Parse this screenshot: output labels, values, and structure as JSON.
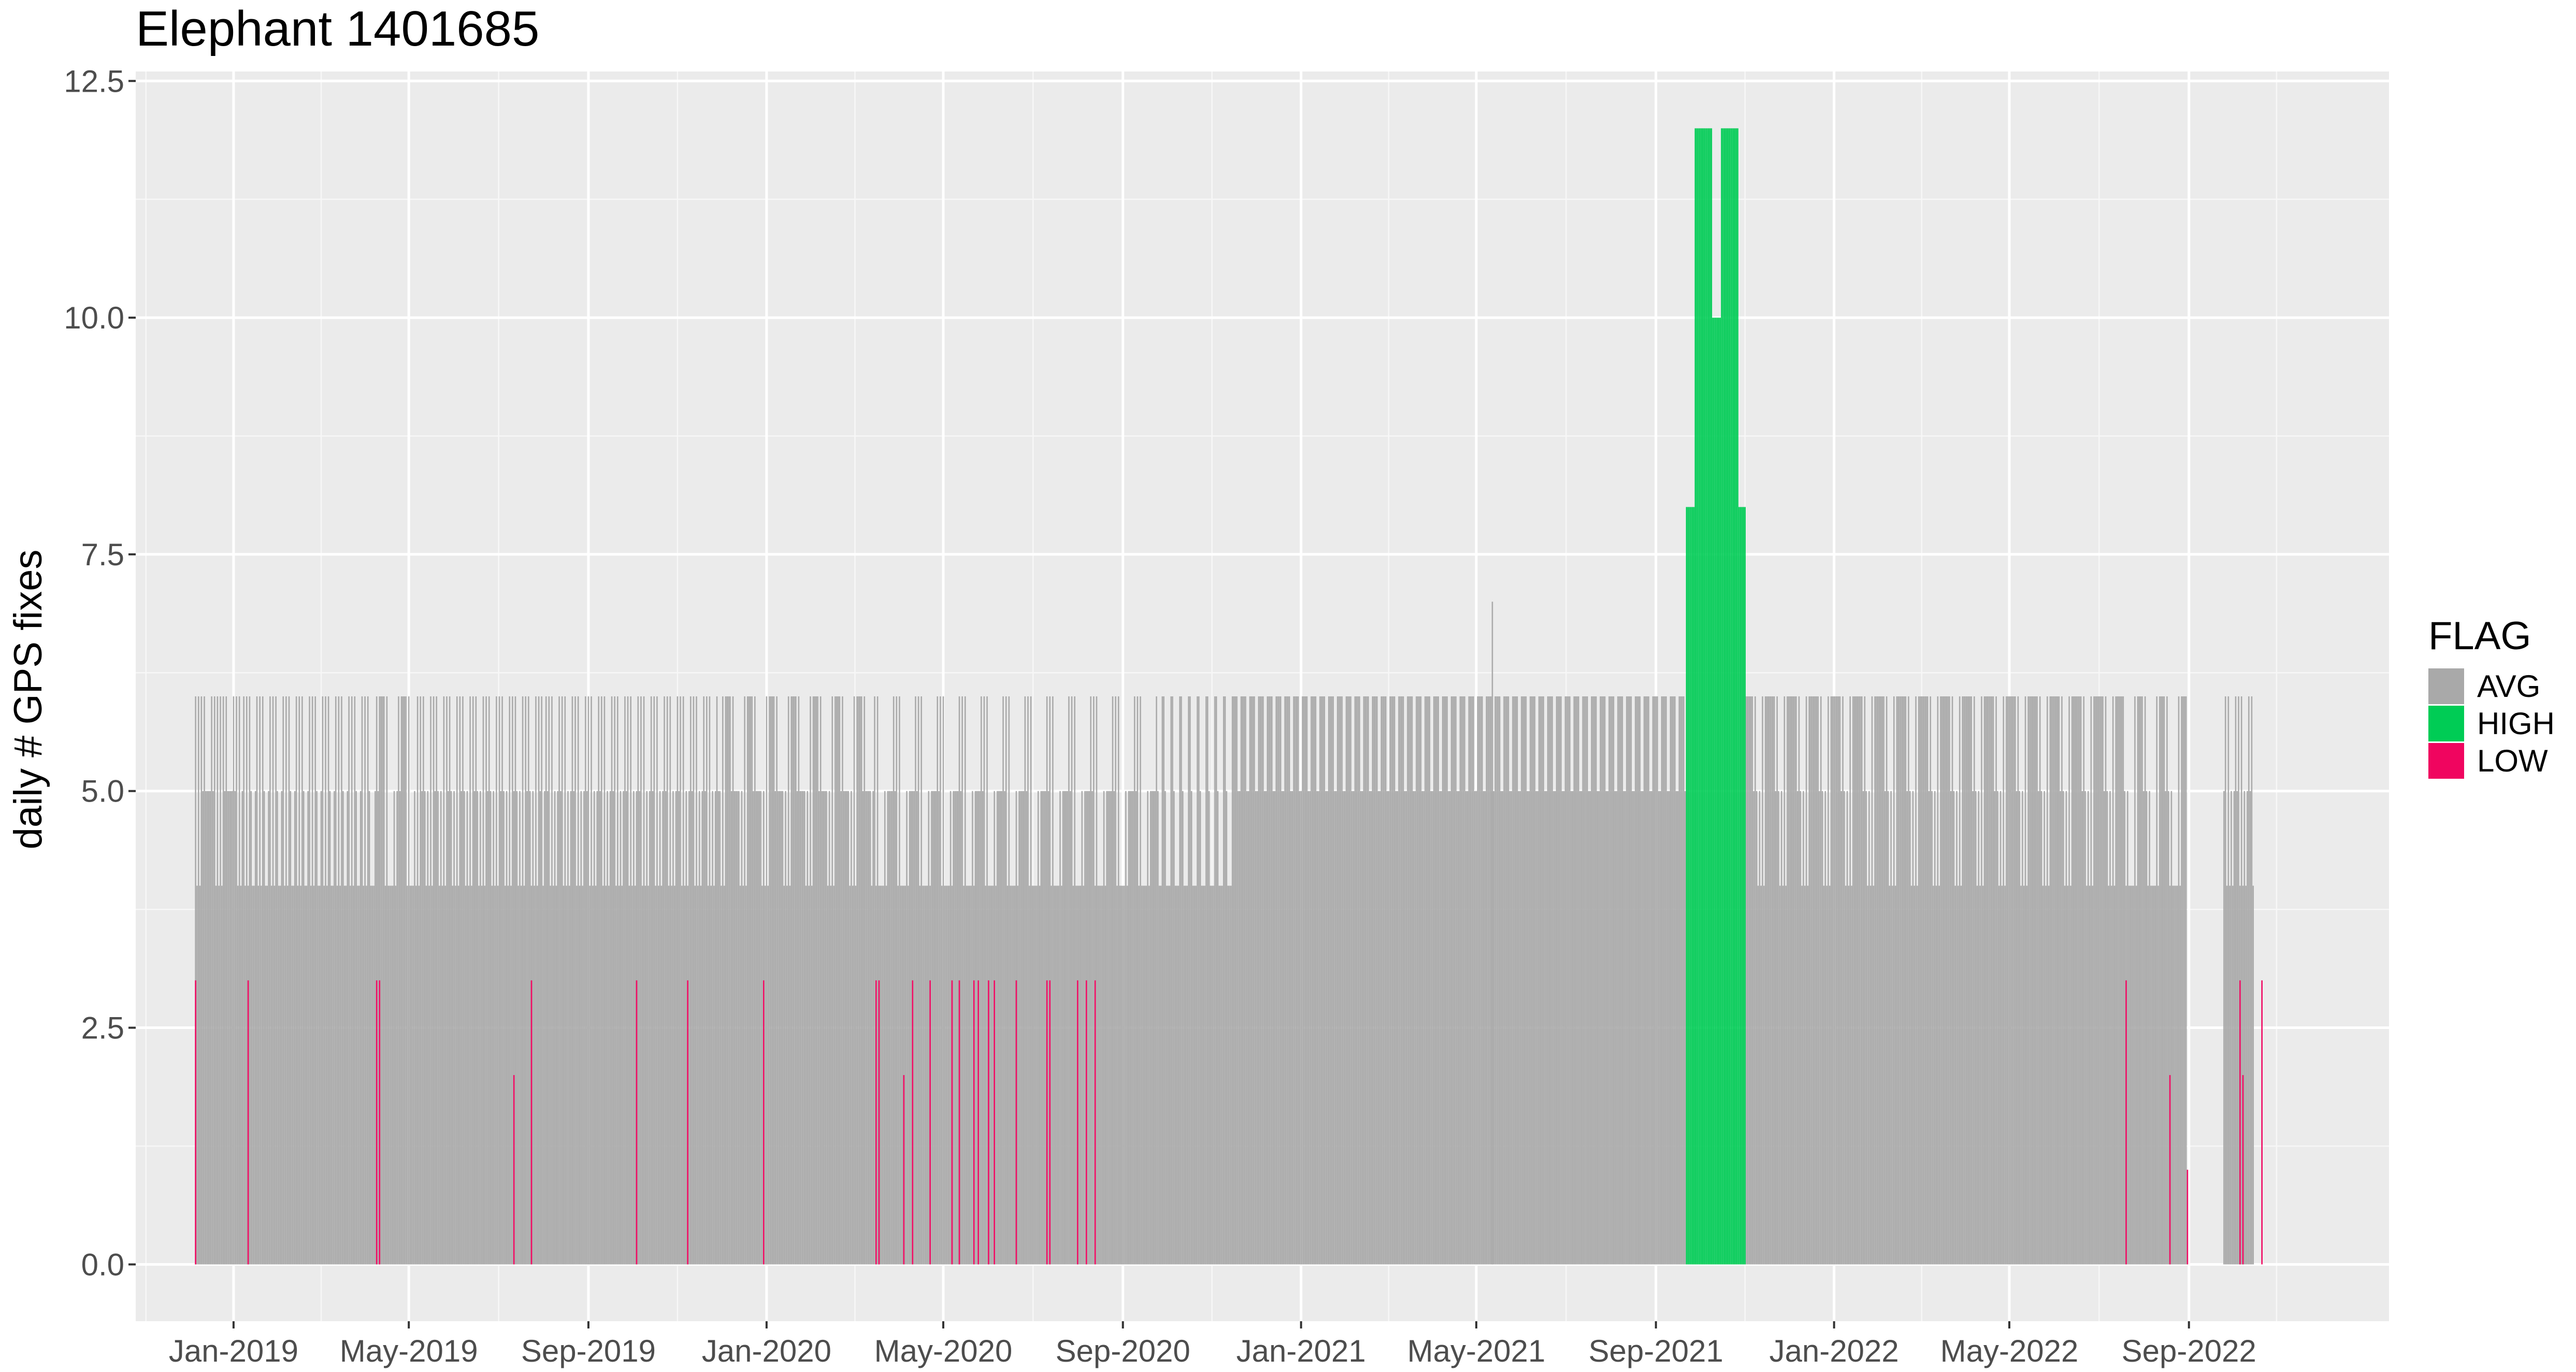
{
  "chart_data": {
    "type": "bar",
    "title": "Elephant 1401685",
    "xlabel": "",
    "ylabel": "daily # GPS fixes",
    "ylim": [
      -0.6,
      12.6
    ],
    "yticks": [
      0.0,
      2.5,
      5.0,
      7.5,
      10.0,
      12.5
    ],
    "ytick_labels": [
      "0.0",
      "2.5",
      "5.0",
      "7.5",
      "10.0",
      "12.5"
    ],
    "xlim": [
      "2018-10-26",
      "2023-01-16"
    ],
    "xticks": [
      "2019-01-01",
      "2019-05-01",
      "2019-09-01",
      "2020-01-01",
      "2020-05-01",
      "2020-09-01",
      "2021-01-01",
      "2021-05-01",
      "2021-09-01",
      "2022-01-01",
      "2022-05-01",
      "2022-09-01"
    ],
    "xtick_labels": [
      "Jan-2019",
      "May-2019",
      "Sep-2019",
      "Jan-2020",
      "May-2020",
      "Sep-2020",
      "Jan-2021",
      "May-2021",
      "Sep-2021",
      "Jan-2022",
      "May-2022",
      "Sep-2022"
    ],
    "grid": true,
    "legend_position": "right",
    "legend": {
      "title": "FLAG",
      "entries": [
        {
          "label": "AVG",
          "color": "#A9A9A9"
        },
        {
          "label": "HIGH",
          "color": "#00CC55"
        },
        {
          "label": "LOW",
          "color": "#F0055F"
        }
      ]
    },
    "series": [
      {
        "name": "AVG",
        "color": "#A9A9A9",
        "periods": [
          {
            "start": "2018-12-06",
            "end": "2019-01-05",
            "values": [
              6,
              5,
              4,
              5,
              6
            ]
          },
          {
            "start": "2019-01-06",
            "end": "2019-04-06",
            "values": [
              4,
              5,
              6,
              5,
              4,
              6
            ]
          },
          {
            "start": "2019-04-07",
            "end": "2019-05-04",
            "values": [
              4,
              6,
              5,
              4,
              6
            ]
          },
          {
            "start": "2019-05-05",
            "end": "2019-07-31",
            "values": [
              5,
              4,
              6,
              5,
              4,
              6
            ]
          },
          {
            "start": "2019-08-01",
            "end": "2019-11-29",
            "values": [
              4,
              5,
              6,
              4,
              5,
              6
            ]
          },
          {
            "start": "2019-11-30",
            "end": "2020-03-13",
            "values": [
              5,
              6,
              4,
              5,
              6
            ]
          },
          {
            "start": "2020-03-14",
            "end": "2020-09-25",
            "values": [
              5,
              4,
              6,
              5,
              4
            ]
          },
          {
            "start": "2020-09-26",
            "end": "2020-11-16",
            "values": [
              4,
              5,
              6,
              4
            ]
          },
          {
            "start": "2020-11-17",
            "end": "2021-09-21",
            "values": [
              6,
              6,
              5,
              6
            ]
          },
          {
            "start": "2021-11-02",
            "end": "2022-07-17",
            "values": [
              6,
              5,
              6,
              4,
              6
            ]
          },
          {
            "start": "2022-07-18",
            "end": "2022-08-30",
            "values": [
              6,
              4,
              5,
              6,
              4
            ]
          },
          {
            "start": "2022-09-25",
            "end": "2022-10-15",
            "values": [
              5,
              6,
              4
            ]
          }
        ],
        "notable_points": [
          {
            "x": "2021-05-12",
            "y": 7
          }
        ]
      },
      {
        "name": "HIGH",
        "color": "#00CC55",
        "range": [
          "2021-09-22",
          "2021-11-01"
        ],
        "values": [
          8,
          12,
          12,
          10,
          12,
          12,
          8
        ]
      },
      {
        "name": "LOW",
        "color": "#F0055F",
        "points": [
          {
            "x": "2018-12-06",
            "y": 3
          },
          {
            "x": "2019-01-11",
            "y": 3
          },
          {
            "x": "2019-04-09",
            "y": 3
          },
          {
            "x": "2019-04-11",
            "y": 3
          },
          {
            "x": "2019-07-12",
            "y": 2
          },
          {
            "x": "2019-07-24",
            "y": 3
          },
          {
            "x": "2019-10-04",
            "y": 3
          },
          {
            "x": "2019-11-08",
            "y": 3
          },
          {
            "x": "2019-12-30",
            "y": 3
          },
          {
            "x": "2020-03-16",
            "y": 3
          },
          {
            "x": "2020-03-18",
            "y": 3
          },
          {
            "x": "2020-04-04",
            "y": 2
          },
          {
            "x": "2020-04-10",
            "y": 3
          },
          {
            "x": "2020-04-22",
            "y": 3
          },
          {
            "x": "2020-05-07",
            "y": 3
          },
          {
            "x": "2020-05-12",
            "y": 3
          },
          {
            "x": "2020-05-22",
            "y": 3
          },
          {
            "x": "2020-05-25",
            "y": 3
          },
          {
            "x": "2020-06-01",
            "y": 3
          },
          {
            "x": "2020-06-05",
            "y": 3
          },
          {
            "x": "2020-06-20",
            "y": 3
          },
          {
            "x": "2020-07-11",
            "y": 3
          },
          {
            "x": "2020-07-13",
            "y": 3
          },
          {
            "x": "2020-08-01",
            "y": 3
          },
          {
            "x": "2020-08-07",
            "y": 3
          },
          {
            "x": "2020-08-13",
            "y": 3
          },
          {
            "x": "2022-07-20",
            "y": 3
          },
          {
            "x": "2022-08-19",
            "y": 2
          },
          {
            "x": "2022-08-31",
            "y": 1
          },
          {
            "x": "2022-10-06",
            "y": 3
          },
          {
            "x": "2022-10-08",
            "y": 2
          },
          {
            "x": "2022-10-21",
            "y": 3
          }
        ]
      }
    ]
  }
}
